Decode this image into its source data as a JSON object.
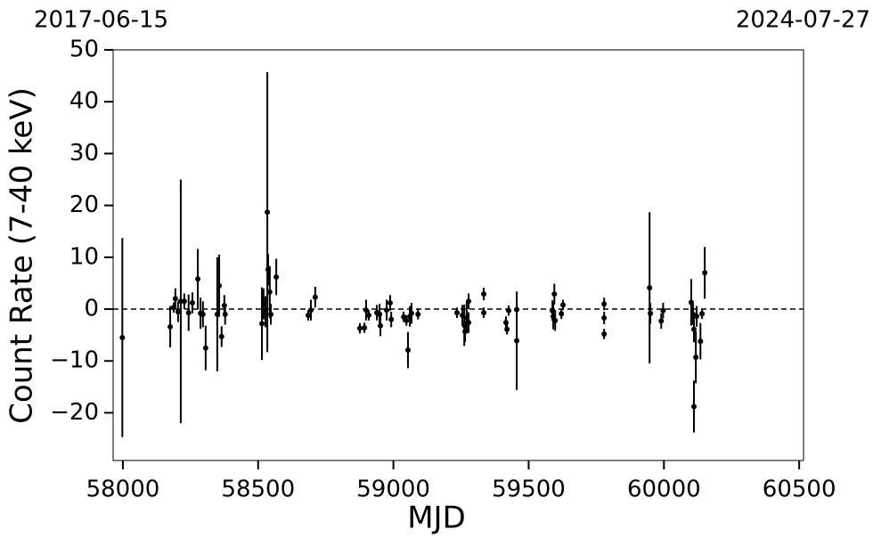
{
  "chart_data": {
    "type": "scatter",
    "x_label": "MJD",
    "y_label": "Count Rate (7-40 keV)",
    "annotations": [
      "2017-06-15",
      "2024-07-27"
    ],
    "xlim": [
      57964,
      60516
    ],
    "ylim": [
      -29.2,
      50
    ],
    "xticks": [
      58000,
      58500,
      59000,
      59500,
      60000,
      60500
    ],
    "yticks": [
      {
        "value": -20,
        "label": "−20"
      },
      {
        "value": -10,
        "label": "−10"
      },
      0,
      10,
      20,
      30,
      40,
      50
    ],
    "reference_line": 0,
    "color": "#000000",
    "x": [
      57998,
      58175,
      58188,
      58194,
      58204,
      58214,
      58227,
      58243,
      58257,
      58277,
      58287,
      58296,
      58306,
      58349,
      58356,
      58365,
      58375,
      58378,
      58514,
      58520,
      58527,
      58534,
      58537,
      58543,
      58547,
      58567,
      58685,
      58695,
      58711,
      58876,
      58893,
      58899,
      58909,
      58939,
      58949,
      58952,
      58975,
      58988,
      58992,
      59038,
      59048,
      59054,
      59061,
      59067,
      59091,
      59235,
      59255,
      59262,
      59265,
      59271,
      59278,
      59278,
      59334,
      59334,
      59416,
      59420,
      59426,
      59456,
      59456,
      59588,
      59591,
      59595,
      59598,
      59621,
      59627,
      59779,
      59779,
      59779,
      59947,
      59950,
      59990,
      59997,
      60101,
      60108,
      60111,
      60111,
      60118,
      60121,
      60135,
      60141,
      60151
    ],
    "values": [
      -5.5,
      -3.4,
      0.3,
      2,
      -0.5,
      1.5,
      1.5,
      -0.7,
      1.2,
      5.8,
      -0.8,
      -1,
      -7.5,
      -1,
      4.5,
      -5.3,
      0.7,
      -1,
      -2.8,
      1,
      -0.5,
      18.7,
      7.6,
      3.3,
      -1,
      6.2,
      -1.2,
      -0.2,
      2.3,
      -3.7,
      -3.6,
      -0.2,
      -1.2,
      -0.7,
      -1,
      -3.2,
      -0.2,
      1.2,
      -2,
      -1.5,
      -2.2,
      -7.9,
      -1.4,
      -0.8,
      -1,
      -0.7,
      -1.2,
      -3.1,
      -4.3,
      -1.7,
      1.5,
      -2.6,
      -0.7,
      2.9,
      -2.6,
      -3.9,
      -0.3,
      -6.1,
      -0.1,
      -0.3,
      -1.4,
      2.9,
      -2.2,
      -0.9,
      0.8,
      1,
      -1.7,
      -4.8,
      4.1,
      -0.8,
      -2.3,
      -0.3,
      1.3,
      -1,
      -3.9,
      -18.8,
      -9.3,
      -1.4,
      -6.2,
      -0.9,
      7
    ],
    "errors": [
      19.2,
      4,
      1,
      2,
      2,
      23.5,
      1.5,
      3.5,
      2,
      5.8,
      3,
      2.5,
      4.3,
      11,
      6,
      2,
      2,
      2,
      7,
      3,
      3,
      27,
      3,
      5,
      2,
      3.5,
      1,
      2,
      2,
      1,
      1,
      2,
      1,
      1.5,
      2,
      2,
      2,
      1.5,
      1.5,
      1,
      1,
      3.5,
      2,
      2,
      1,
      1,
      2,
      4,
      2,
      3,
      1.5,
      2,
      1,
      1.2,
      1.2,
      1,
      1,
      9.5,
      1,
      2,
      2.5,
      2,
      2,
      1,
      1,
      1.2,
      1.2,
      1,
      14.6,
      2,
      1.5,
      1.5,
      4.5,
      2,
      2.5,
      5,
      5,
      2,
      3.5,
      1,
      5
    ]
  }
}
